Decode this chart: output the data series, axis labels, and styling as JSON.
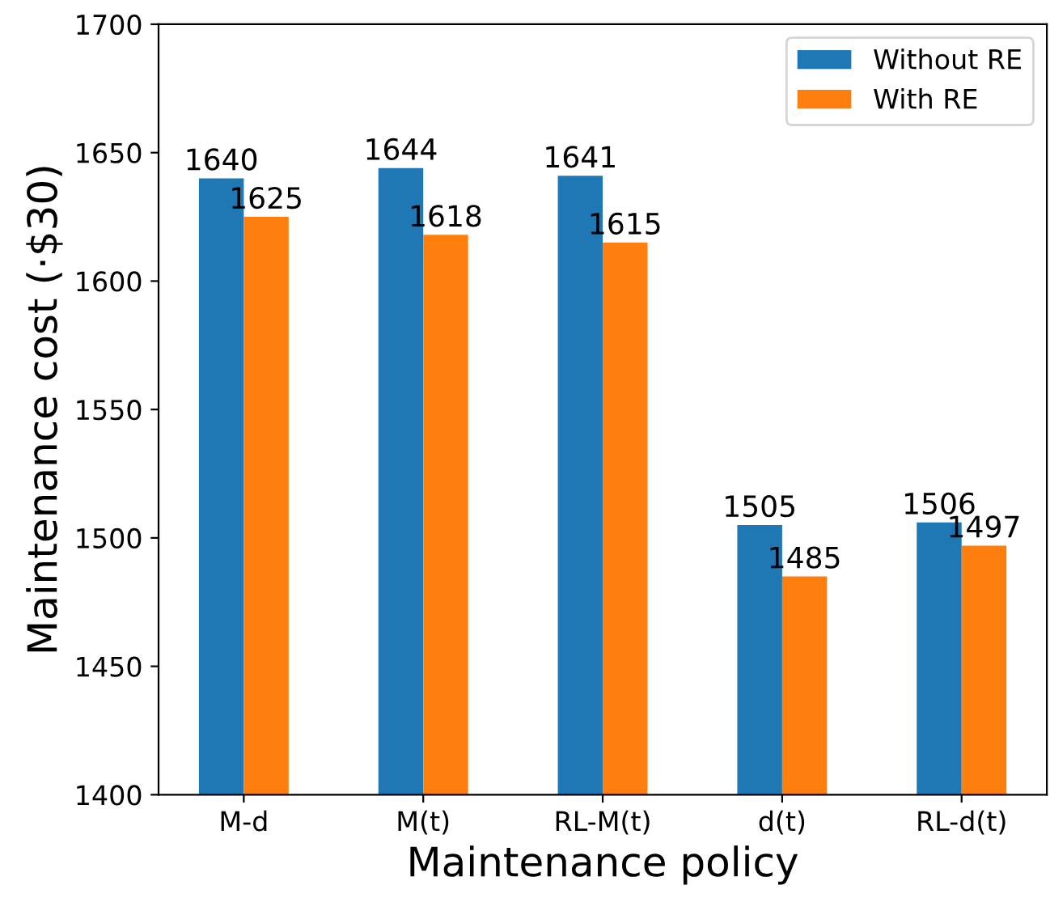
{
  "chart_data": {
    "type": "bar",
    "xlabel": "Maintenance policy",
    "ylabel": "Maintenance cost (·$30)",
    "categories": [
      "M-d",
      "M(t)",
      "RL-M(t)",
      "d(t)",
      "RL-d(t)"
    ],
    "series": [
      {
        "name": "Without RE",
        "color": "#1f77b4",
        "values": [
          1640,
          1644,
          1641,
          1505,
          1506
        ]
      },
      {
        "name": "With RE",
        "color": "#ff7f0e",
        "values": [
          1625,
          1618,
          1615,
          1485,
          1497
        ]
      }
    ],
    "ylim": [
      1400,
      1700
    ],
    "yticks": [
      1400,
      1450,
      1500,
      1550,
      1600,
      1650,
      1700
    ],
    "data_labels": true,
    "legend": "top right",
    "grid": false
  }
}
